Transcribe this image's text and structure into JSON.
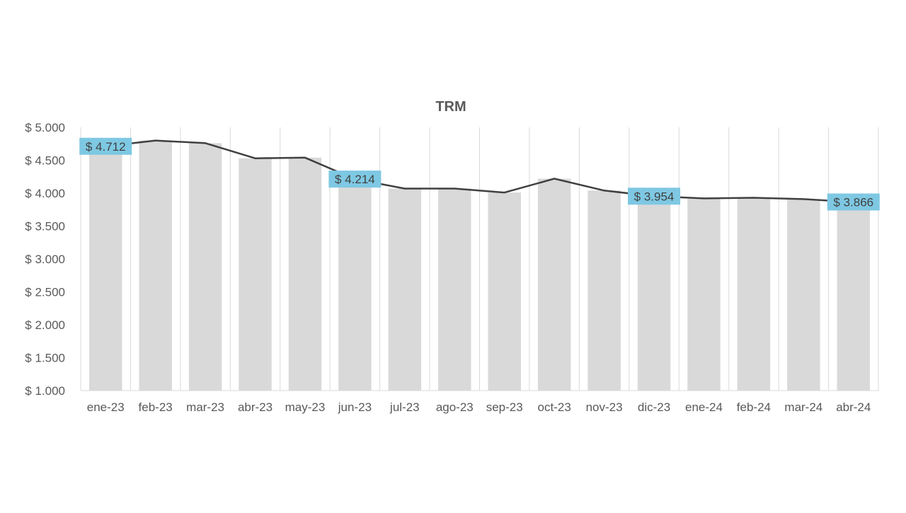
{
  "chart_data": {
    "type": "bar",
    "title": "TRM",
    "xlabel": "",
    "ylabel": "",
    "categories": [
      "ene-23",
      "feb-23",
      "mar-23",
      "abr-23",
      "may-23",
      "jun-23",
      "jul-23",
      "ago-23",
      "sep-23",
      "oct-23",
      "nov-23",
      "dic-23",
      "ene-24",
      "feb-24",
      "mar-24",
      "abr-24"
    ],
    "series": [
      {
        "kind": "bar",
        "color": "#d9d9d9",
        "values": [
          4712,
          4800,
          4760,
          4530,
          4540,
          4214,
          4070,
          4070,
          4010,
          4220,
          4040,
          3954,
          3920,
          3930,
          3910,
          3866
        ]
      },
      {
        "kind": "line",
        "color": "#404040",
        "values": [
          4712,
          4800,
          4760,
          4530,
          4540,
          4214,
          4070,
          4070,
          4010,
          4220,
          4040,
          3954,
          3920,
          3930,
          3910,
          3866
        ]
      }
    ],
    "ylim": [
      1000,
      5000
    ],
    "yticks": [
      1000,
      1500,
      2000,
      2500,
      3000,
      3500,
      4000,
      4500,
      5000
    ],
    "ytick_labels": [
      "$ 1.000",
      "$ 1.500",
      "$ 2.000",
      "$ 2.500",
      "$ 3.000",
      "$ 3.500",
      "$ 4.000",
      "$ 4.500",
      "$ 5.000"
    ],
    "grid": "vertical",
    "legend": "none",
    "data_labels": [
      {
        "category": "ene-23",
        "text": "$ 4.712"
      },
      {
        "category": "jun-23",
        "text": "$ 4.214"
      },
      {
        "category": "dic-23",
        "text": "$ 3.954"
      },
      {
        "category": "abr-24",
        "text": "$ 3.866"
      }
    ],
    "data_label_color": "#7ec8e3"
  }
}
